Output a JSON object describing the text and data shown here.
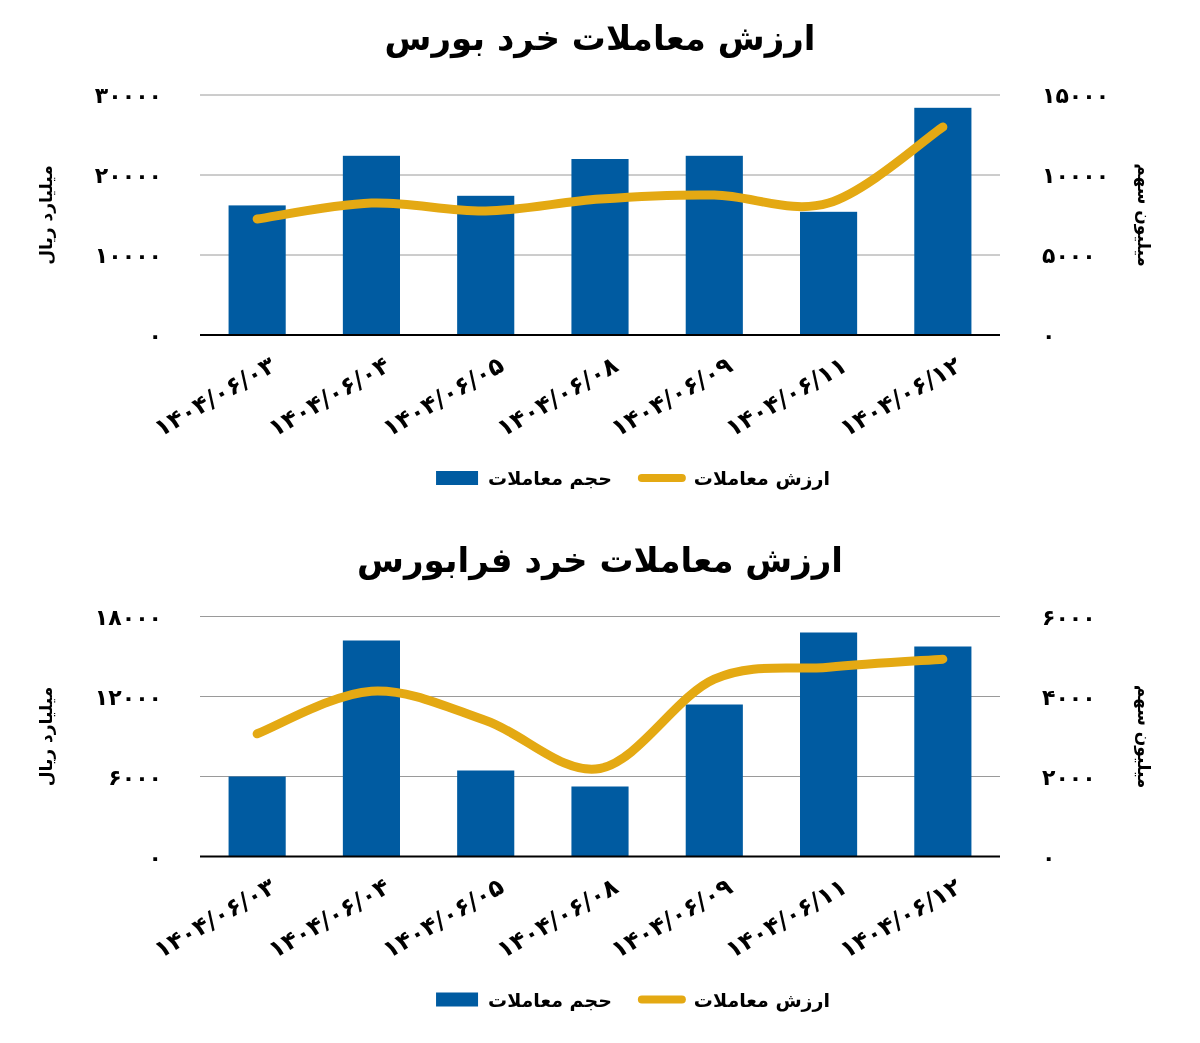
{
  "chart_data": [
    {
      "type": "bar",
      "title": "ارزش معاملات خرد بورس",
      "ylabel": "میلیارد ریال",
      "y2label": "میلیون سهم",
      "categories": [
        "۱۴۰۴/۰۶/۰۳",
        "۱۴۰۴/۰۶/۰۴",
        "۱۴۰۴/۰۶/۰۵",
        "۱۴۰۴/۰۶/۰۸",
        "۱۴۰۴/۰۶/۰۹",
        "۱۴۰۴/۰۶/۱۱",
        "۱۴۰۴/۰۶/۱۲"
      ],
      "series": [
        {
          "name": "حجم معاملات",
          "axis": "y2",
          "color": "#005ba1",
          "values": [
            8100,
            11200,
            8700,
            11000,
            11200,
            7700,
            14200
          ]
        },
        {
          "name": "ارزش معاملات",
          "type": "line",
          "axis": "y",
          "color": "#e4a913",
          "values": [
            14500,
            16500,
            15500,
            17000,
            17500,
            16500,
            26000
          ]
        }
      ],
      "ylim": [
        0,
        30000
      ],
      "yticks": [
        {
          "value": 0,
          "label": "۰"
        },
        {
          "value": 10000,
          "label": "۱۰۰۰۰"
        },
        {
          "value": 20000,
          "label": "۲۰۰۰۰"
        },
        {
          "value": 30000,
          "label": "۳۰۰۰۰"
        }
      ],
      "y2lim": [
        0,
        15000
      ],
      "y2ticks": [
        {
          "value": 0,
          "label": "۰"
        },
        {
          "value": 5000,
          "label": "۵۰۰۰"
        },
        {
          "value": 10000,
          "label": "۱۰۰۰۰"
        },
        {
          "value": 15000,
          "label": "۱۵۰۰۰"
        }
      ],
      "grid": "y",
      "legend": "bottom"
    },
    {
      "type": "bar",
      "title": "ارزش معاملات خرد فرابورس",
      "ylabel": "میلیارد ریال",
      "y2label": "میلیون سهم",
      "categories": [
        "۱۴۰۴/۰۶/۰۳",
        "۱۴۰۴/۰۶/۰۴",
        "۱۴۰۴/۰۶/۰۵",
        "۱۴۰۴/۰۶/۰۸",
        "۱۴۰۴/۰۶/۰۹",
        "۱۴۰۴/۰۶/۱۱",
        "۱۴۰۴/۰۶/۱۲"
      ],
      "series": [
        {
          "name": "حجم معاملات",
          "axis": "y2",
          "color": "#005ba1",
          "values": [
            2000,
            5400,
            2150,
            1750,
            3800,
            5600,
            5250
          ]
        },
        {
          "name": "ارزش معاملات",
          "type": "line",
          "axis": "y",
          "color": "#e4a913",
          "values": [
            9200,
            12400,
            10200,
            6600,
            13300,
            14200,
            14800
          ]
        }
      ],
      "ylim": [
        0,
        18000
      ],
      "yticks": [
        {
          "value": 0,
          "label": "۰"
        },
        {
          "value": 6000,
          "label": "۶۰۰۰"
        },
        {
          "value": 12000,
          "label": "۱۲۰۰۰"
        },
        {
          "value": 18000,
          "label": "۱۸۰۰۰"
        }
      ],
      "y2lim": [
        0,
        6000
      ],
      "y2ticks": [
        {
          "value": 0,
          "label": "۰"
        },
        {
          "value": 2000,
          "label": "۲۰۰۰"
        },
        {
          "value": 4000,
          "label": "۴۰۰۰"
        },
        {
          "value": 6000,
          "label": "۶۰۰۰"
        }
      ],
      "grid": "y",
      "legend": "bottom"
    }
  ]
}
